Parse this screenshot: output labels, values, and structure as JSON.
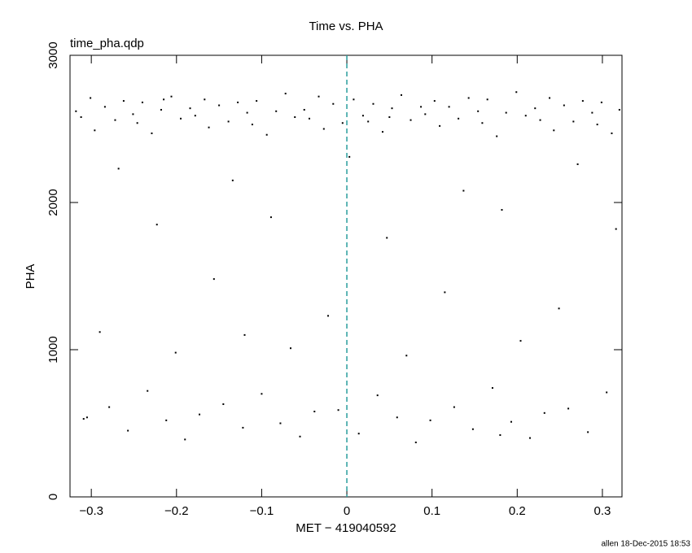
{
  "chart_data": {
    "type": "scatter",
    "title": "Time vs. PHA",
    "subtitle": "time_pha.qdp",
    "xlabel": "MET − 419040592",
    "ylabel": "PHA",
    "footer": "allen 18-Dec-2015 18:53",
    "color": "#000000",
    "vline": {
      "value": 0,
      "color": "#2a9d9d"
    },
    "xlim": [
      -0.325,
      0.323
    ],
    "ylim": [
      0,
      3000
    ],
    "xticks": [
      {
        "value": -0.3,
        "label": "−0.3"
      },
      {
        "value": -0.2,
        "label": "−0.2"
      },
      {
        "value": -0.1,
        "label": "−0.1"
      },
      0,
      0.1,
      0.2,
      0.3
    ],
    "yticks": [
      0,
      1000,
      2000,
      3000
    ],
    "x": [
      -0.318,
      -0.312,
      -0.305,
      -0.301,
      -0.296,
      -0.29,
      -0.284,
      -0.279,
      -0.272,
      -0.268,
      -0.262,
      -0.257,
      -0.251,
      -0.246,
      -0.24,
      -0.234,
      -0.229,
      -0.223,
      -0.218,
      -0.212,
      -0.206,
      -0.201,
      -0.195,
      -0.19,
      -0.184,
      -0.178,
      -0.173,
      -0.167,
      -0.162,
      -0.156,
      -0.15,
      -0.145,
      -0.139,
      -0.134,
      -0.128,
      -0.122,
      -0.117,
      -0.111,
      -0.106,
      -0.1,
      -0.094,
      -0.089,
      -0.083,
      -0.078,
      -0.072,
      -0.066,
      -0.061,
      -0.055,
      -0.05,
      -0.044,
      -0.038,
      -0.033,
      -0.027,
      -0.022,
      -0.016,
      -0.01,
      -0.005,
      0.003,
      0.008,
      0.014,
      0.019,
      0.025,
      0.031,
      0.036,
      0.042,
      0.047,
      0.053,
      0.059,
      0.064,
      0.07,
      0.075,
      0.081,
      0.087,
      0.092,
      0.098,
      0.103,
      0.109,
      0.115,
      0.12,
      0.126,
      0.131,
      0.137,
      0.143,
      0.148,
      0.154,
      0.159,
      0.165,
      0.171,
      0.176,
      0.182,
      0.187,
      0.193,
      0.199,
      0.204,
      0.21,
      0.215,
      0.221,
      0.227,
      0.232,
      0.238,
      0.243,
      0.249,
      0.255,
      0.26,
      0.266,
      0.271,
      0.277,
      0.283,
      0.288,
      0.294,
      0.299,
      0.305,
      0.311,
      0.316,
      0.32,
      -0.309,
      -0.215,
      -0.12,
      0.05,
      0.18
    ],
    "values": [
      2620,
      2580,
      540,
      2710,
      2490,
      1120,
      2650,
      610,
      2560,
      2230,
      2690,
      450,
      2600,
      2540,
      2680,
      720,
      2470,
      1850,
      2630,
      520,
      2720,
      980,
      2570,
      390,
      2640,
      2590,
      560,
      2700,
      2510,
      1480,
      2660,
      630,
      2550,
      2150,
      2680,
      470,
      2610,
      2530,
      2690,
      700,
      2460,
      1900,
      2620,
      500,
      2740,
      1010,
      2580,
      410,
      2630,
      2570,
      580,
      2720,
      2500,
      1230,
      2670,
      590,
      2540,
      2310,
      2700,
      430,
      2590,
      2550,
      2670,
      690,
      2480,
      1760,
      2640,
      540,
      2730,
      960,
      2560,
      370,
      2650,
      2600,
      520,
      2690,
      2520,
      1390,
      2650,
      610,
      2570,
      2080,
      2710,
      460,
      2620,
      2540,
      2700,
      740,
      2450,
      1950,
      2610,
      510,
      2750,
      1060,
      2590,
      400,
      2640,
      2560,
      570,
      2710,
      2490,
      1280,
      2660,
      600,
      2550,
      2260,
      2690,
      440,
      2610,
      2530,
      2680,
      710,
      2470,
      1820,
      2630,
      530,
      2700,
      1100,
      2580,
      420
    ]
  }
}
